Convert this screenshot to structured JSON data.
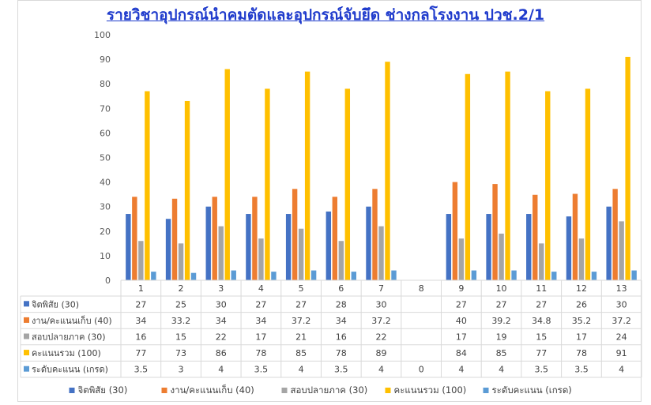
{
  "chart_data": {
    "type": "bar",
    "title": "รายวิชาอุปกรณ์นำคมตัดและอุปกรณ์จับยึด ช่างกลโรงงาน ปวช.2/1",
    "categories": [
      "1",
      "2",
      "3",
      "4",
      "5",
      "6",
      "7",
      "8",
      "9",
      "10",
      "11",
      "12",
      "13"
    ],
    "ylim": [
      0,
      100
    ],
    "yticks": [
      0,
      10,
      20,
      30,
      40,
      50,
      60,
      70,
      80,
      90,
      100
    ],
    "grid": false,
    "legend_position": "bottom",
    "data_table": true,
    "series": [
      {
        "name": "จิตพิสัย (30)",
        "color": "#4472c4",
        "values": [
          27,
          25,
          30,
          27,
          27,
          28,
          30,
          null,
          27,
          27,
          27,
          26,
          30
        ],
        "labels": [
          "27",
          "25",
          "30",
          "27",
          "27",
          "28",
          "30",
          "",
          "27",
          "27",
          "27",
          "26",
          "30"
        ]
      },
      {
        "name": "งาน/คะแนนเก็บ (40)",
        "color": "#ed7d31",
        "values": [
          34,
          33.2,
          34,
          34,
          37.2,
          34,
          37.2,
          null,
          40,
          39.2,
          34.8,
          35.2,
          37.2
        ],
        "labels": [
          "34",
          "33.2",
          "34",
          "34",
          "37.2",
          "34",
          "37.2",
          "",
          "40",
          "39.2",
          "34.8",
          "35.2",
          "37.2"
        ]
      },
      {
        "name": "สอบปลายภาค (30)",
        "color": "#a5a5a5",
        "values": [
          16,
          15,
          22,
          17,
          21,
          16,
          22,
          null,
          17,
          19,
          15,
          17,
          24
        ],
        "labels": [
          "16",
          "15",
          "22",
          "17",
          "21",
          "16",
          "22",
          "",
          "17",
          "19",
          "15",
          "17",
          "24"
        ]
      },
      {
        "name": "คะแนนรวม (100)",
        "color": "#ffc000",
        "values": [
          77,
          73,
          86,
          78,
          85,
          78,
          89,
          null,
          84,
          85,
          77,
          78,
          91
        ],
        "labels": [
          "77",
          "73",
          "86",
          "78",
          "85",
          "78",
          "89",
          "",
          "84",
          "85",
          "77",
          "78",
          "91"
        ]
      },
      {
        "name": "ระดับคะแนน (เกรด)",
        "color": "#5b9bd5",
        "values": [
          3.5,
          3,
          4,
          3.5,
          4,
          3.5,
          4,
          0,
          4,
          4,
          3.5,
          3.5,
          4
        ],
        "labels": [
          "3.5",
          "3",
          "4",
          "3.5",
          "4",
          "3.5",
          "4",
          "0",
          "4",
          "4",
          "3.5",
          "3.5",
          "4"
        ]
      }
    ]
  }
}
